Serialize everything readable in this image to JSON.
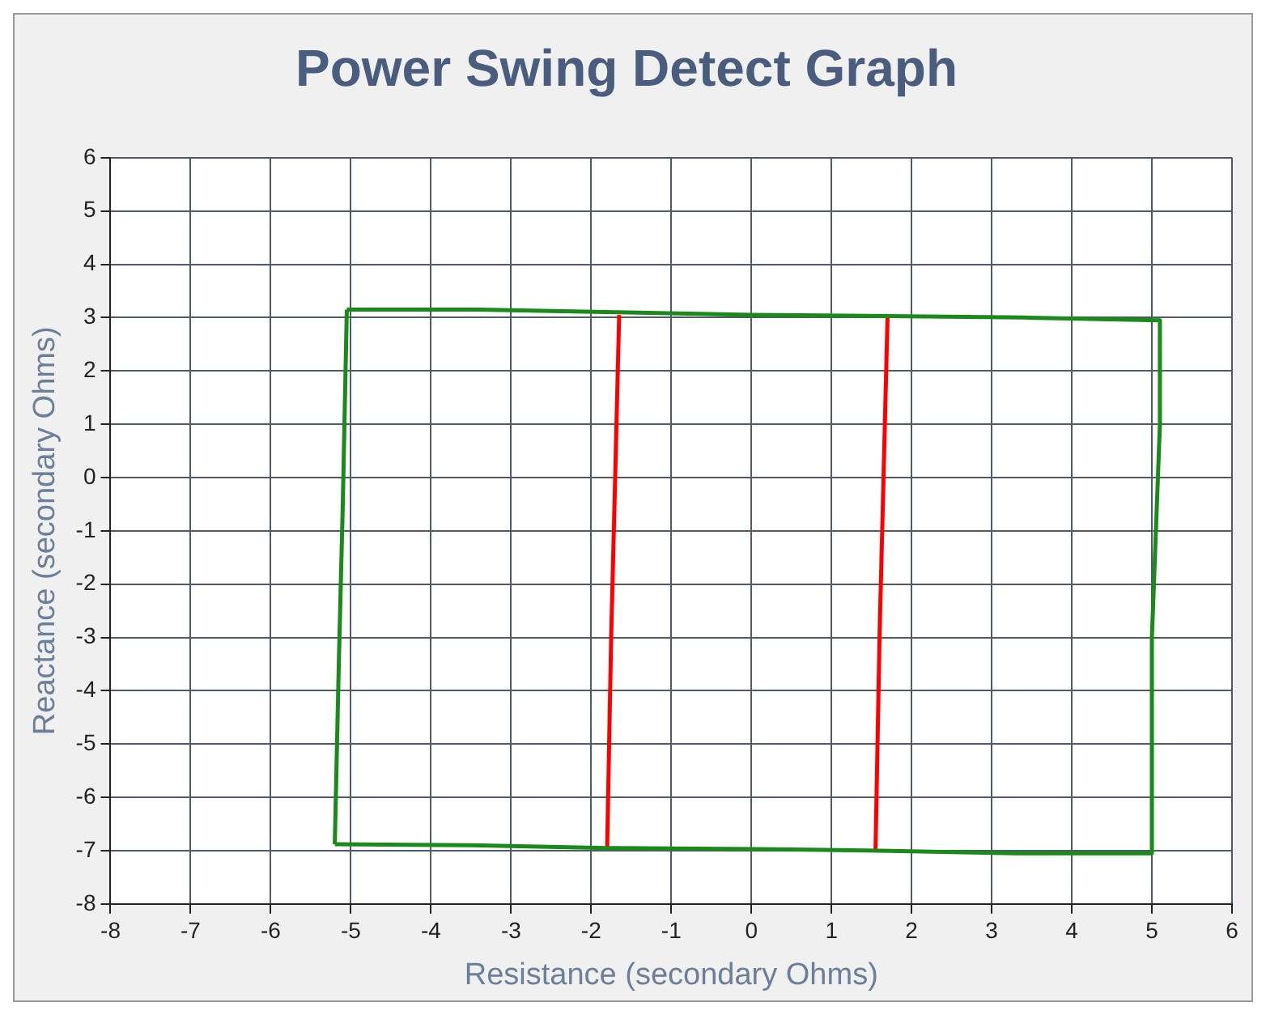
{
  "chart_data": {
    "type": "line",
    "title": "Power Swing Detect Graph",
    "xlabel": "Resistance (secondary Ohms)",
    "ylabel": "Reactance (secondary Ohms)",
    "xlim": [
      -8,
      6
    ],
    "xticks": [
      -8,
      -7,
      -6,
      -5,
      -4,
      -3,
      -2,
      -1,
      0,
      1,
      2,
      3,
      4,
      5,
      6
    ],
    "ylim": [
      -8,
      6
    ],
    "yticks": [
      -8,
      -7,
      -6,
      -5,
      -4,
      -3,
      -2,
      -1,
      0,
      1,
      2,
      3,
      4,
      5,
      6
    ],
    "grid": true,
    "legend": false,
    "marker": "none",
    "line_style": "solid",
    "series": [
      {
        "color": "#1a8a1a",
        "x": [
          -5.05,
          -3.4,
          -1.7,
          0,
          1.7,
          3.4,
          5.1
        ],
        "values": [
          3.15,
          3.15,
          3.1,
          3.05,
          3.03,
          3.0,
          2.95
        ]
      },
      {
        "color": "#1a8a1a",
        "x": [
          5.1,
          5.1,
          5.0,
          5.0
        ],
        "values": [
          2.95,
          1,
          -3,
          -7.05
        ]
      },
      {
        "color": "#1a8a1a",
        "x": [
          -5.2,
          -3.5,
          -1.8,
          0,
          1.6,
          3.3,
          5.0
        ],
        "values": [
          -6.88,
          -6.9,
          -6.95,
          -6.97,
          -7.0,
          -7.05,
          -7.05
        ]
      },
      {
        "color": "#1a8a1a",
        "x": [
          -5.2,
          -5.15,
          -5.1,
          -5.05
        ],
        "values": [
          -6.88,
          -3.5,
          -0.5,
          3.15
        ]
      },
      {
        "color": "#ff0000",
        "x": [
          -1.65,
          -1.7,
          -1.75,
          -1.8
        ],
        "values": [
          3.05,
          0,
          -3,
          -6.95
        ]
      },
      {
        "color": "#ff0000",
        "x": [
          1.7,
          1.65,
          1.6,
          1.55
        ],
        "values": [
          3.0,
          0,
          -3,
          -7.0
        ]
      }
    ]
  }
}
